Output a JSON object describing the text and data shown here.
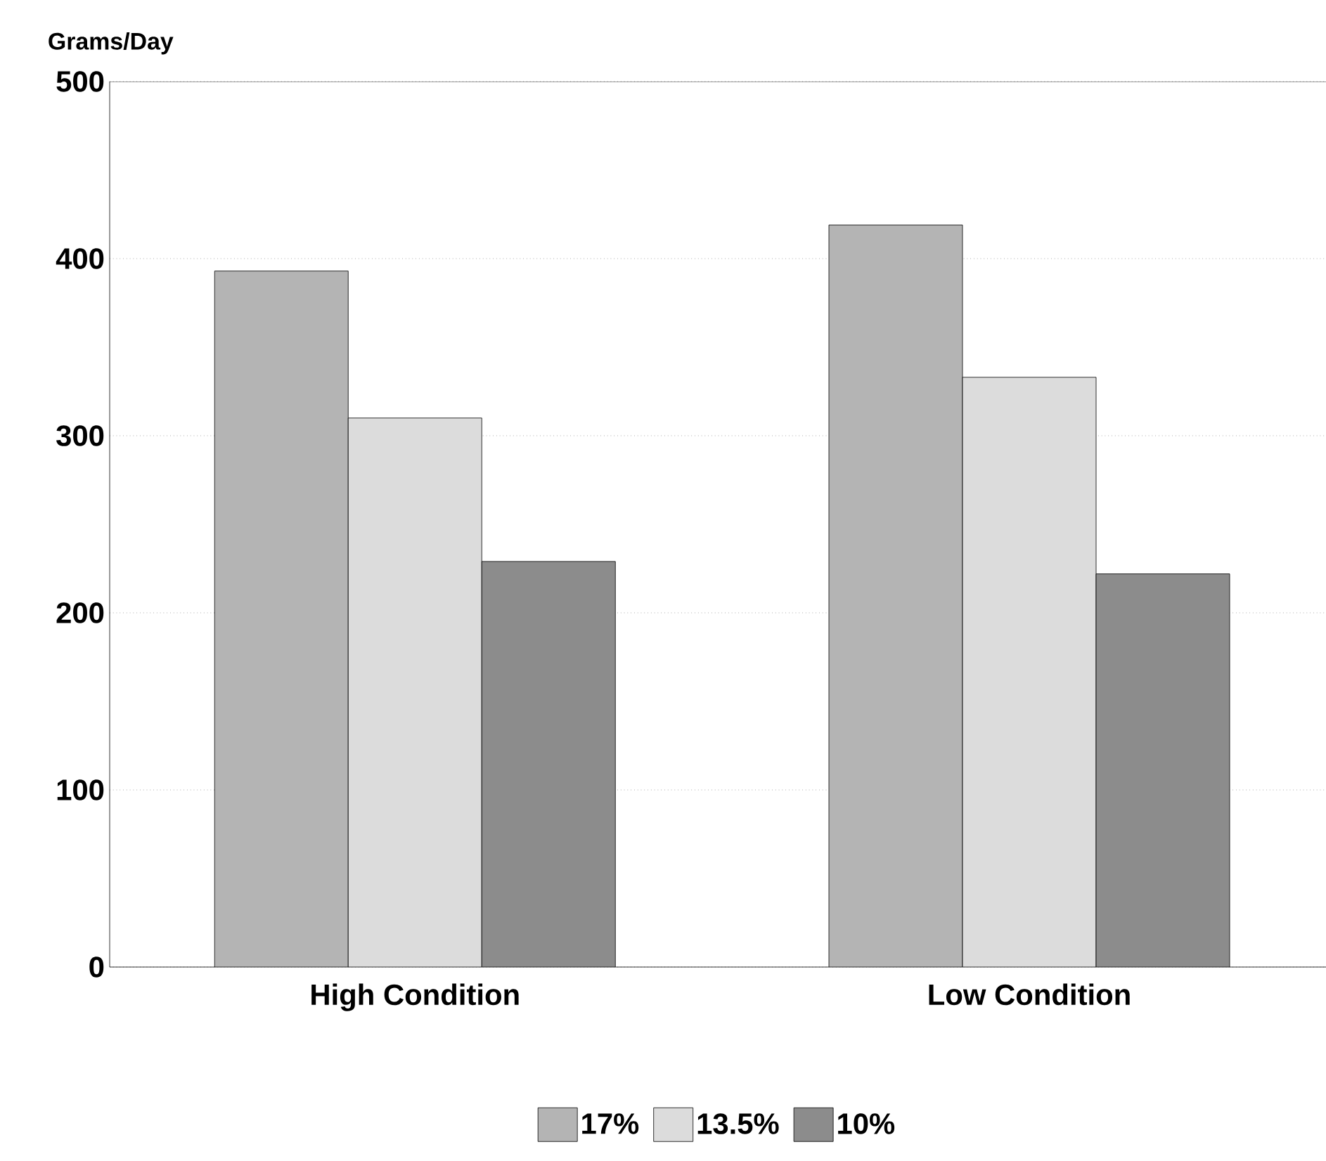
{
  "chart_data": {
    "type": "bar",
    "ylabel": "Grams/Day",
    "categories": [
      "High Condition",
      "Low Condition"
    ],
    "series": [
      {
        "name": "17%",
        "color": "#b4b4b4",
        "values": [
          393,
          419
        ]
      },
      {
        "name": "13.5%",
        "color": "#dcdcdc",
        "values": [
          310,
          333
        ]
      },
      {
        "name": "10%",
        "color": "#8c8c8c",
        "values": [
          229,
          222
        ]
      }
    ],
    "ylim": [
      0,
      500
    ],
    "yticks": [
      0,
      100,
      200,
      300,
      400,
      500
    ],
    "grid": "y",
    "legend": "bottom"
  }
}
